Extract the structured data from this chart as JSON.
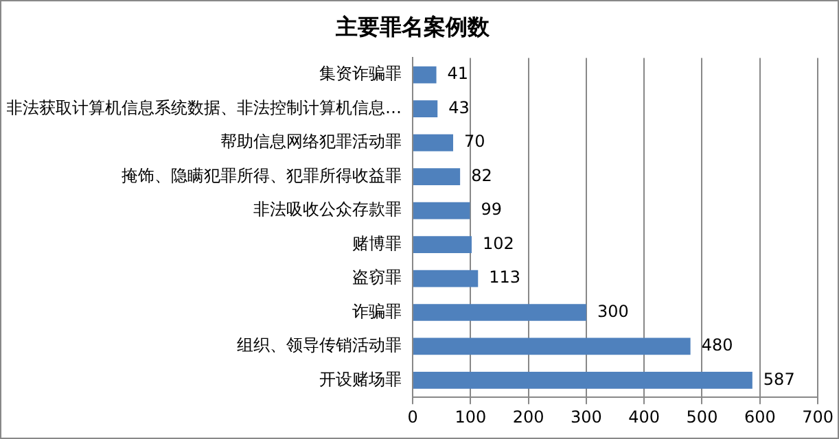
{
  "chart_data": {
    "type": "bar",
    "orientation": "horizontal",
    "title": "主要罪名案例数",
    "categories": [
      "集资诈骗罪",
      "非法获取计算机信息系统数据、非法控制计算机信息…",
      "帮助信息网络犯罪活动罪",
      "掩饰、隐瞒犯罪所得、犯罪所得收益罪",
      "非法吸收公众存款罪",
      "赌博罪",
      "盗窃罪",
      "诈骗罪",
      "组织、领导传销活动罪",
      "开设赌场罪"
    ],
    "values": [
      41,
      43,
      70,
      82,
      99,
      102,
      113,
      300,
      480,
      587
    ],
    "color": "#4f81bd",
    "xlim": [
      0,
      700
    ],
    "xticks": [
      0,
      100,
      200,
      300,
      400,
      500,
      600,
      700
    ],
    "grid": "x",
    "data_labels": true,
    "legend": false
  }
}
